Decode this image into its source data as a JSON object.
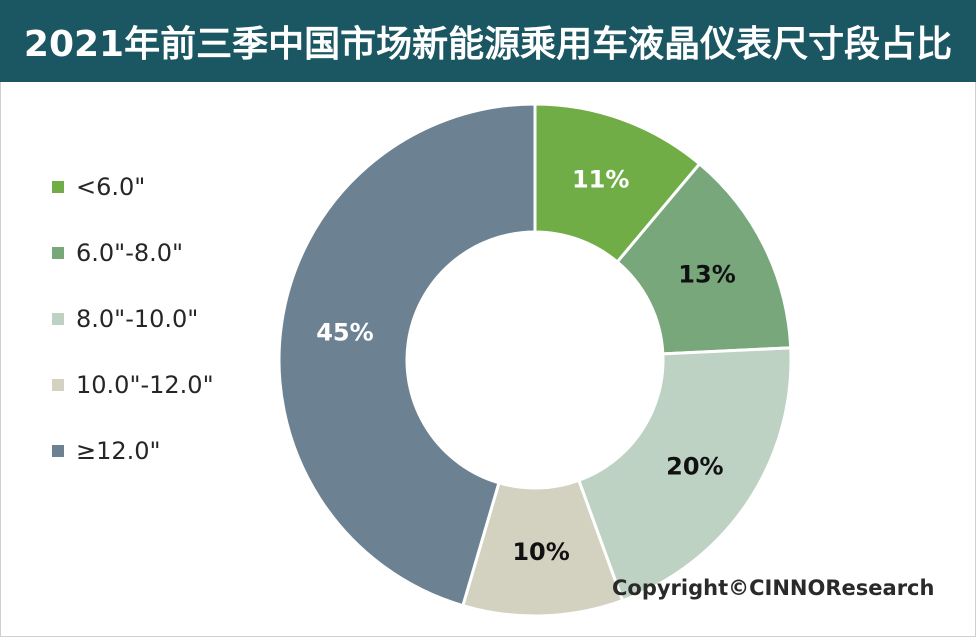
{
  "title": "2021年前三季中国市场新能源乘用车液晶仪表尺寸段占比",
  "copyright": "Copyright©CINNOResearch",
  "colors": {
    "title_bar": "#1b5663",
    "title_text": "#ffffff",
    "segment_separator": "#ffffff"
  },
  "chart_data": {
    "type": "pie",
    "style": "donut",
    "legend_position": "left",
    "categories": [
      "<6.0\"",
      "6.0\"-8.0\"",
      "8.0\"-10.0\"",
      "10.0\"-12.0\"",
      "≥12.0\""
    ],
    "values": [
      11,
      13,
      20,
      10,
      45
    ],
    "labels": [
      "11%",
      "13%",
      "20%",
      "10%",
      "45%"
    ],
    "colors": [
      "#70ad47",
      "#77a77b",
      "#bdd2c2",
      "#d3d2c1",
      "#6c8293"
    ],
    "label_colors": [
      "#ffffff",
      "#111111",
      "#111111",
      "#111111",
      "#ffffff"
    ]
  }
}
